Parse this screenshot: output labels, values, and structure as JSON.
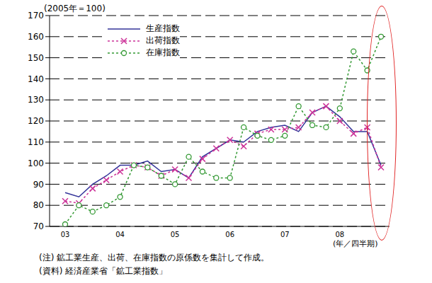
{
  "chart_data": {
    "type": "line",
    "subtitle": "(2005年＝100)",
    "x_label": "(年／四半期)",
    "annotations": [
      "(注) 鉱工業生産、出荷、在庫指数の原係数を集計して作成。",
      "(資料) 経済産業省「鉱工業指数」"
    ],
    "categories": [
      "03",
      null,
      null,
      null,
      "04",
      null,
      null,
      null,
      "05",
      null,
      null,
      null,
      "06",
      null,
      null,
      null,
      "07",
      null,
      null,
      null,
      "08",
      null,
      null,
      null
    ],
    "series": [
      {
        "name": "生産指数",
        "color": "#333399",
        "line_style": "solid",
        "marker": "none",
        "values": [
          86,
          84,
          90,
          94,
          99,
          99,
          101,
          96,
          97,
          93,
          103,
          107,
          111,
          110,
          115,
          117,
          118,
          115,
          124,
          127,
          122,
          115,
          115,
          99
        ]
      },
      {
        "name": "出荷指数",
        "color": "#cc3399",
        "line_style": "dotted",
        "marker": "x",
        "values": [
          82,
          81,
          88,
          92,
          96,
          99,
          98,
          94,
          97,
          93,
          102,
          107,
          111,
          108,
          114,
          116,
          116,
          117,
          124,
          127,
          120,
          114,
          117,
          98
        ]
      },
      {
        "name": "在庫指数",
        "color": "#339933",
        "line_style": "dotted",
        "marker": "circle",
        "values": [
          71,
          80,
          77,
          80,
          84,
          99,
          98,
          94,
          90,
          103,
          96,
          93,
          93,
          117,
          113,
          111,
          113,
          127,
          118,
          117,
          126,
          153,
          144,
          160
        ]
      }
    ],
    "ylim": [
      70,
      170
    ],
    "yticks": [
      70,
      80,
      90,
      100,
      110,
      120,
      130,
      140,
      150,
      160,
      170
    ],
    "grid": true,
    "legend": "upper left"
  }
}
